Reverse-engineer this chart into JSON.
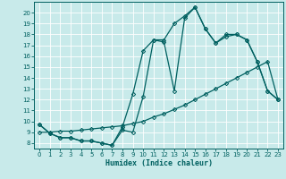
{
  "xlabel": "Humidex (Indice chaleur)",
  "bg_color": "#c8eaea",
  "line_color": "#006060",
  "xlim": [
    -0.5,
    23.5
  ],
  "ylim": [
    7.5,
    21.0
  ],
  "xticks": [
    0,
    1,
    2,
    3,
    4,
    5,
    6,
    7,
    8,
    9,
    10,
    11,
    12,
    13,
    14,
    15,
    16,
    17,
    18,
    19,
    20,
    21,
    22,
    23
  ],
  "yticks": [
    8,
    9,
    10,
    11,
    12,
    13,
    14,
    15,
    16,
    17,
    18,
    19,
    20
  ],
  "line1_x": [
    0,
    1,
    2,
    3,
    4,
    5,
    6,
    7,
    8,
    9,
    10,
    11,
    12,
    13,
    14,
    15,
    16,
    17,
    18,
    19,
    20,
    21,
    22,
    23
  ],
  "line1_y": [
    9.7,
    8.9,
    8.5,
    8.5,
    8.2,
    8.2,
    8.0,
    7.8,
    9.2,
    9.0,
    12.3,
    17.5,
    17.5,
    19.0,
    19.7,
    20.5,
    18.5,
    17.2,
    18.0,
    18.0,
    17.5,
    15.5,
    12.8,
    12.0
  ],
  "line2_x": [
    0,
    1,
    2,
    3,
    4,
    5,
    6,
    7,
    8,
    9,
    10,
    11,
    12,
    13,
    14,
    15,
    16,
    17,
    18,
    19,
    20,
    21,
    22,
    23
  ],
  "line2_y": [
    9.7,
    8.9,
    8.5,
    8.5,
    8.2,
    8.2,
    8.0,
    7.8,
    9.5,
    12.5,
    16.5,
    17.5,
    17.3,
    12.8,
    19.5,
    20.5,
    18.5,
    17.2,
    17.8,
    18.0,
    17.5,
    15.5,
    12.8,
    12.0
  ],
  "line3_x": [
    0,
    1,
    2,
    3,
    4,
    5,
    6,
    7,
    8,
    9,
    10,
    11,
    12,
    13,
    14,
    15,
    16,
    17,
    18,
    19,
    20,
    21,
    22,
    23
  ],
  "line3_y": [
    9.0,
    9.0,
    9.1,
    9.1,
    9.2,
    9.3,
    9.4,
    9.5,
    9.6,
    9.8,
    10.0,
    10.4,
    10.7,
    11.1,
    11.5,
    12.0,
    12.5,
    13.0,
    13.5,
    14.0,
    14.5,
    15.0,
    15.5,
    12.0
  ]
}
